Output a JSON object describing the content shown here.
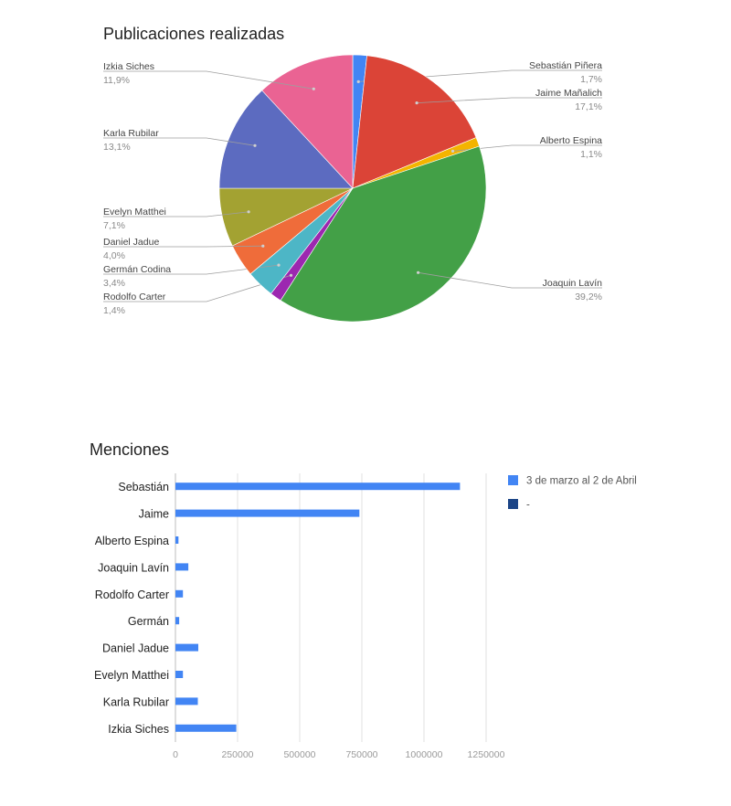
{
  "chart_data": [
    {
      "type": "pie",
      "title": "Publicaciones realizadas",
      "slices": [
        {
          "label": "Sebastián Piñera",
          "value": 1.7,
          "value_label": "1,7%",
          "color": "#4285f4"
        },
        {
          "label": "Jaime Mañalich",
          "value": 17.1,
          "value_label": "17,1%",
          "color": "#db4437"
        },
        {
          "label": "Alberto Espina",
          "value": 1.1,
          "value_label": "1,1%",
          "color": "#f4b400"
        },
        {
          "label": "Joaquin Lavín",
          "value": 39.2,
          "value_label": "39,2%",
          "color": "#43a047"
        },
        {
          "label": "Rodolfo Carter",
          "value": 1.4,
          "value_label": "1,4%",
          "color": "#9c27b0"
        },
        {
          "label": "Germán Codina",
          "value": 3.4,
          "value_label": "3,4%",
          "color": "#4db6c6"
        },
        {
          "label": "Daniel Jadue",
          "value": 4.0,
          "value_label": "4,0%",
          "color": "#ef6c3a"
        },
        {
          "label": "Evelyn Matthei",
          "value": 7.1,
          "value_label": "7,1%",
          "color": "#a3a232"
        },
        {
          "label": "Karla Rubilar",
          "value": 13.1,
          "value_label": "13,1%",
          "color": "#5c6bc0"
        },
        {
          "label": "Izkia Siches",
          "value": 11.9,
          "value_label": "11,9%",
          "color": "#ea6393"
        }
      ]
    },
    {
      "type": "bar",
      "orientation": "horizontal",
      "title": "Menciones",
      "categories": [
        "Sebastián",
        "Jaime",
        "Alberto Espina",
        "Joaquin Lavín",
        "Rodolfo Carter",
        "Germán",
        "Daniel Jadue",
        "Evelyn Matthei",
        "Karla Rubilar",
        "Izkia Siches"
      ],
      "series": [
        {
          "name": "3 de marzo al 2 de Abril",
          "color": "#4285f4",
          "values": [
            1145000,
            740000,
            12000,
            52000,
            30000,
            15000,
            92000,
            30000,
            90000,
            245000
          ]
        },
        {
          "name": "-",
          "color": "#1c4587",
          "values": [
            0,
            0,
            0,
            0,
            0,
            0,
            0,
            0,
            0,
            0
          ]
        }
      ],
      "xlim": [
        0,
        1250000
      ],
      "xticks": [
        0,
        250000,
        500000,
        750000,
        1000000,
        1250000
      ],
      "xtick_labels": [
        "0",
        "250000",
        "500000",
        "750000",
        "1000000",
        "1250000"
      ],
      "grid": true,
      "legend_position": "right"
    }
  ]
}
